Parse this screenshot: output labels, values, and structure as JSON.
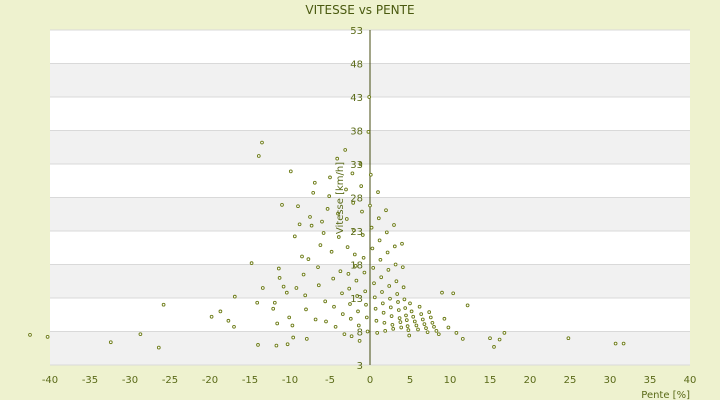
{
  "chart_data": {
    "type": "scatter",
    "title": "VITESSE vs PENTE",
    "xlabel": "Pente [%]",
    "ylabel": "Vitesse [km/h]",
    "xlim": [
      -40,
      40
    ],
    "ylim": [
      3,
      53
    ],
    "xticks": [
      "-40",
      "-35",
      "-30",
      "-25",
      "-20",
      "-15",
      "-10",
      "-5",
      "0",
      "5",
      "10",
      "15",
      "20",
      "25",
      "30",
      "35",
      "40"
    ],
    "yticks": [
      "3",
      "8",
      "13",
      "18",
      "23",
      "28",
      "33",
      "38",
      "43",
      "48",
      "53"
    ],
    "grid": true,
    "legend": "none",
    "colors": {
      "points": "#6b7a14",
      "axis": "#444b10",
      "background": "#eef2cf"
    },
    "points": [
      [
        -42.5,
        7.5
      ],
      [
        -40.3,
        7.2
      ],
      [
        -32.4,
        6.4
      ],
      [
        -28.7,
        7.6
      ],
      [
        -26.4,
        5.6
      ],
      [
        -25.8,
        12.0
      ],
      [
        -19.8,
        10.2
      ],
      [
        -18.7,
        11.0
      ],
      [
        -17.7,
        9.6
      ],
      [
        -17.0,
        8.7
      ],
      [
        -16.9,
        13.2
      ],
      [
        -14.8,
        18.2
      ],
      [
        -14.1,
        12.3
      ],
      [
        -14.0,
        6.0
      ],
      [
        -13.9,
        34.2
      ],
      [
        -13.5,
        36.2
      ],
      [
        -13.4,
        14.5
      ],
      [
        -12.1,
        11.4
      ],
      [
        -11.9,
        12.3
      ],
      [
        -11.7,
        5.9
      ],
      [
        -11.6,
        9.2
      ],
      [
        -11.4,
        17.4
      ],
      [
        -11.3,
        16.0
      ],
      [
        -11.0,
        26.9
      ],
      [
        -10.8,
        14.7
      ],
      [
        -10.4,
        13.8
      ],
      [
        -10.3,
        6.1
      ],
      [
        -10.1,
        10.1
      ],
      [
        -9.9,
        31.9
      ],
      [
        -9.7,
        8.9
      ],
      [
        -9.6,
        7.1
      ],
      [
        -9.4,
        22.2
      ],
      [
        -9.2,
        14.5
      ],
      [
        -9.0,
        26.7
      ],
      [
        -8.8,
        24.0
      ],
      [
        -8.5,
        19.2
      ],
      [
        -8.3,
        16.5
      ],
      [
        -8.1,
        13.4
      ],
      [
        -8.0,
        11.3
      ],
      [
        -7.9,
        6.9
      ],
      [
        -7.7,
        18.8
      ],
      [
        -7.5,
        25.1
      ],
      [
        -7.3,
        23.8
      ],
      [
        -7.1,
        28.7
      ],
      [
        -6.9,
        30.2
      ],
      [
        -6.8,
        9.8
      ],
      [
        -6.5,
        17.6
      ],
      [
        -6.4,
        14.9
      ],
      [
        -6.2,
        20.9
      ],
      [
        -6.0,
        24.4
      ],
      [
        -5.8,
        22.7
      ],
      [
        -5.6,
        12.5
      ],
      [
        -5.5,
        9.5
      ],
      [
        -5.3,
        26.3
      ],
      [
        -5.1,
        28.2
      ],
      [
        -5.0,
        31.0
      ],
      [
        -4.8,
        19.9
      ],
      [
        -4.6,
        15.9
      ],
      [
        -4.5,
        11.7
      ],
      [
        -4.3,
        8.7
      ],
      [
        -4.1,
        33.8
      ],
      [
        -4.0,
        25.6
      ],
      [
        -3.9,
        22.1
      ],
      [
        -3.7,
        17.0
      ],
      [
        -3.5,
        13.7
      ],
      [
        -3.4,
        10.6
      ],
      [
        -3.2,
        7.6
      ],
      [
        -3.1,
        35.1
      ],
      [
        -3.0,
        29.2
      ],
      [
        -2.9,
        24.8
      ],
      [
        -2.8,
        20.6
      ],
      [
        -2.7,
        16.6
      ],
      [
        -2.6,
        14.4
      ],
      [
        -2.5,
        12.1
      ],
      [
        -2.4,
        9.9
      ],
      [
        -2.3,
        7.3
      ],
      [
        -2.2,
        31.6
      ],
      [
        -2.1,
        27.2
      ],
      [
        -2.0,
        23.1
      ],
      [
        -1.9,
        19.5
      ],
      [
        -1.8,
        17.8
      ],
      [
        -1.7,
        15.6
      ],
      [
        -1.6,
        13.3
      ],
      [
        -1.5,
        11.0
      ],
      [
        -1.4,
        8.9
      ],
      [
        -1.3,
        6.6
      ],
      [
        -1.2,
        33.0
      ],
      [
        -1.1,
        29.7
      ],
      [
        -1.0,
        25.9
      ],
      [
        -0.9,
        22.4
      ],
      [
        -0.8,
        19.0
      ],
      [
        -0.7,
        16.8
      ],
      [
        -0.6,
        14.0
      ],
      [
        -0.5,
        12.0
      ],
      [
        -0.4,
        10.1
      ],
      [
        -0.3,
        8.0
      ],
      [
        -0.2,
        37.8
      ],
      [
        -0.1,
        43.0
      ],
      [
        0.0,
        26.8
      ],
      [
        0.1,
        31.4
      ],
      [
        0.2,
        23.5
      ],
      [
        0.3,
        20.4
      ],
      [
        0.4,
        17.5
      ],
      [
        0.5,
        15.2
      ],
      [
        0.6,
        13.1
      ],
      [
        0.7,
        11.4
      ],
      [
        0.8,
        9.6
      ],
      [
        0.9,
        7.8
      ],
      [
        1.0,
        28.8
      ],
      [
        1.1,
        24.9
      ],
      [
        1.2,
        21.6
      ],
      [
        1.3,
        18.7
      ],
      [
        1.4,
        16.1
      ],
      [
        1.5,
        13.9
      ],
      [
        1.6,
        12.2
      ],
      [
        1.7,
        10.8
      ],
      [
        1.8,
        9.3
      ],
      [
        1.9,
        8.1
      ],
      [
        2.0,
        26.1
      ],
      [
        2.1,
        22.8
      ],
      [
        2.2,
        19.8
      ],
      [
        2.3,
        17.2
      ],
      [
        2.4,
        14.8
      ],
      [
        2.5,
        12.9
      ],
      [
        2.6,
        11.6
      ],
      [
        2.7,
        10.3
      ],
      [
        2.8,
        9.0
      ],
      [
        2.9,
        8.4
      ],
      [
        3.0,
        23.9
      ],
      [
        3.1,
        20.7
      ],
      [
        3.2,
        18.0
      ],
      [
        3.3,
        15.5
      ],
      [
        3.4,
        13.6
      ],
      [
        3.5,
        12.4
      ],
      [
        3.6,
        11.2
      ],
      [
        3.7,
        10.0
      ],
      [
        3.8,
        9.4
      ],
      [
        3.9,
        8.6
      ],
      [
        4.0,
        21.1
      ],
      [
        4.1,
        17.6
      ],
      [
        4.2,
        14.6
      ],
      [
        4.3,
        12.8
      ],
      [
        4.4,
        11.5
      ],
      [
        4.5,
        10.4
      ],
      [
        4.6,
        9.7
      ],
      [
        4.7,
        8.8
      ],
      [
        4.8,
        8.2
      ],
      [
        4.9,
        7.4
      ],
      [
        5.0,
        12.2
      ],
      [
        5.2,
        11.0
      ],
      [
        5.4,
        10.2
      ],
      [
        5.6,
        9.5
      ],
      [
        5.8,
        8.9
      ],
      [
        6.0,
        8.3
      ],
      [
        6.2,
        11.7
      ],
      [
        6.4,
        10.6
      ],
      [
        6.6,
        9.8
      ],
      [
        6.8,
        9.1
      ],
      [
        7.0,
        8.5
      ],
      [
        7.2,
        7.9
      ],
      [
        7.4,
        10.9
      ],
      [
        7.6,
        10.1
      ],
      [
        7.8,
        9.3
      ],
      [
        8.0,
        8.7
      ],
      [
        8.3,
        8.1
      ],
      [
        8.6,
        7.6
      ],
      [
        9.0,
        13.8
      ],
      [
        9.3,
        9.9
      ],
      [
        9.8,
        8.6
      ],
      [
        10.4,
        13.7
      ],
      [
        10.8,
        7.8
      ],
      [
        11.6,
        6.9
      ],
      [
        12.2,
        11.9
      ],
      [
        15.0,
        7.0
      ],
      [
        15.5,
        5.7
      ],
      [
        16.2,
        6.8
      ],
      [
        16.8,
        7.8
      ],
      [
        24.8,
        7.0
      ],
      [
        30.7,
        6.2
      ],
      [
        31.7,
        6.2
      ]
    ]
  }
}
